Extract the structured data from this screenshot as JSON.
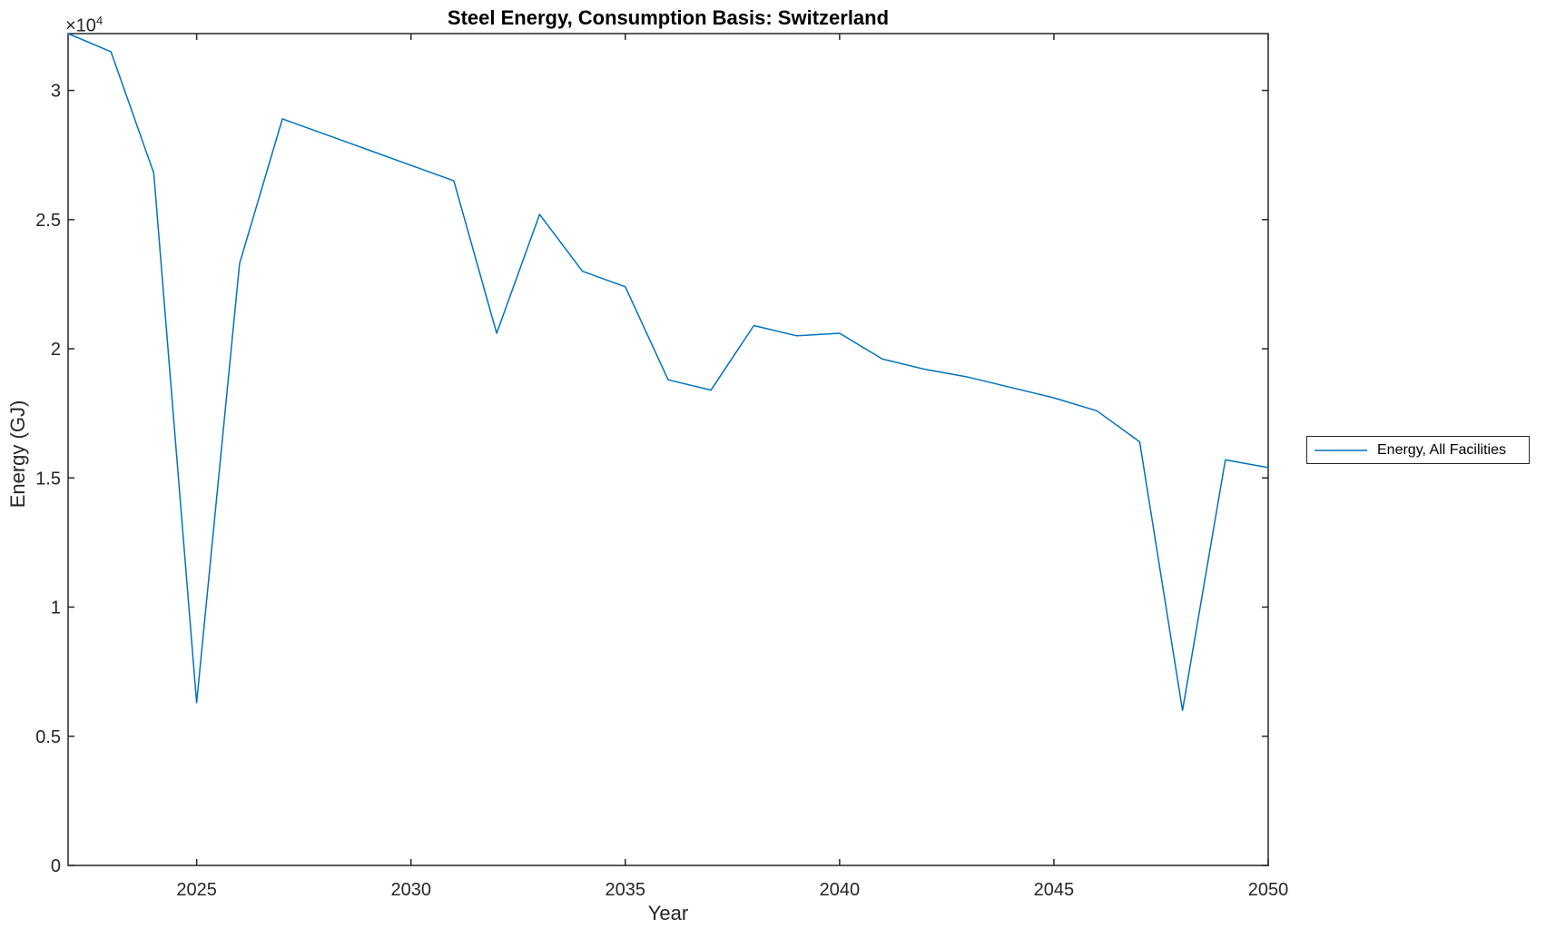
{
  "chart_data": {
    "type": "line",
    "title": "Steel Energy, Consumption Basis: Switzerland",
    "xlabel": "Year",
    "ylabel": "Energy (GJ)",
    "y_axis_exponent": {
      "base": "×10",
      "sup": "4"
    },
    "grid": false,
    "xlim": [
      2022,
      2050
    ],
    "ylim": [
      0,
      32200
    ],
    "x_ticks": [
      {
        "value": 2025,
        "label": "2025"
      },
      {
        "value": 2030,
        "label": "2030"
      },
      {
        "value": 2035,
        "label": "2035"
      },
      {
        "value": 2040,
        "label": "2040"
      },
      {
        "value": 2045,
        "label": "2045"
      },
      {
        "value": 2050,
        "label": "2050"
      }
    ],
    "y_ticks": [
      {
        "value": 0,
        "label": "0"
      },
      {
        "value": 5000,
        "label": "0.5"
      },
      {
        "value": 10000,
        "label": "1"
      },
      {
        "value": 15000,
        "label": "1.5"
      },
      {
        "value": 20000,
        "label": "2"
      },
      {
        "value": 25000,
        "label": "2.5"
      },
      {
        "value": 30000,
        "label": "3"
      }
    ],
    "legend": {
      "position": "right-outside",
      "entries": [
        {
          "label": "Energy, All Facilities",
          "color": "#0072BD"
        }
      ]
    },
    "series": [
      {
        "name": "Energy, All Facilities",
        "color": "#0072BD",
        "x": [
          2022,
          2023,
          2024,
          2025,
          2026,
          2027,
          2028,
          2029,
          2030,
          2031,
          2032,
          2033,
          2034,
          2035,
          2036,
          2037,
          2038,
          2039,
          2040,
          2041,
          2042,
          2043,
          2044,
          2045,
          2046,
          2047,
          2048,
          2049,
          2050
        ],
        "values": [
          32200,
          31500,
          26800,
          6300,
          23300,
          28900,
          28300,
          27700,
          27100,
          26500,
          20600,
          25200,
          23000,
          22400,
          18800,
          18400,
          20900,
          20500,
          20600,
          19600,
          19200,
          18900,
          18500,
          18100,
          17600,
          16400,
          6000,
          15700,
          15400
        ]
      }
    ],
    "colors": {
      "axes": "#262626",
      "line": "#0072BD",
      "background": "#ffffff"
    }
  }
}
